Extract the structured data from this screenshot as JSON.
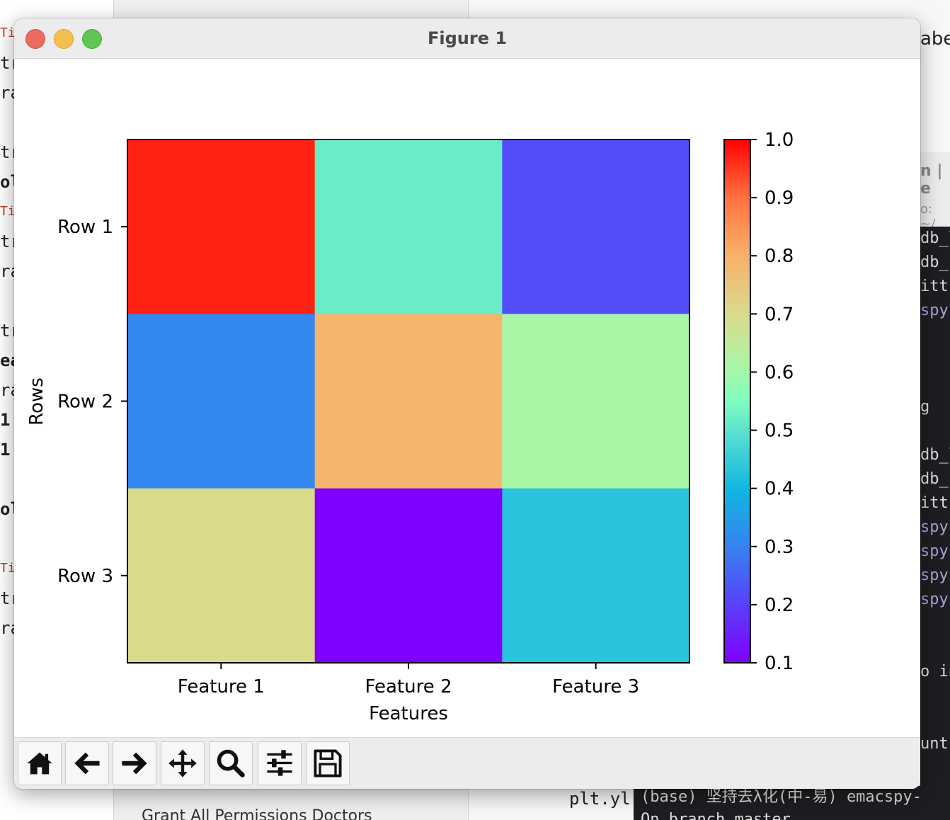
{
  "window": {
    "title": "Figure 1"
  },
  "toolbar": {
    "buttons": [
      {
        "name": "home",
        "icon": "home-icon"
      },
      {
        "name": "back",
        "icon": "arrow-left-icon"
      },
      {
        "name": "forward",
        "icon": "arrow-right-icon"
      },
      {
        "name": "pan",
        "icon": "move-icon"
      },
      {
        "name": "zoom",
        "icon": "magnifier-icon"
      },
      {
        "name": "configure-subplots",
        "icon": "sliders-icon"
      },
      {
        "name": "save",
        "icon": "floppy-disk-icon"
      }
    ]
  },
  "chart_data": {
    "type": "heatmap",
    "colormap": "rainbow",
    "x_categories": [
      "Feature 1",
      "Feature 2",
      "Feature 3"
    ],
    "y_categories": [
      "Row 1",
      "Row 2",
      "Row 3"
    ],
    "values": [
      [
        0.97,
        0.52,
        0.22
      ],
      [
        0.31,
        0.79,
        0.61
      ],
      [
        0.7,
        0.1,
        0.43
      ]
    ],
    "xlabel": "Features",
    "ylabel": "Rows",
    "colorbar": {
      "min": 0.1,
      "max": 1.0,
      "ticks": [
        "0.1",
        "0.2",
        "0.3",
        "0.4",
        "0.5",
        "0.6",
        "0.7",
        "0.8",
        "0.9",
        "1.0"
      ]
    }
  },
  "background": {
    "terminal_prompt": "(base) 坚持去λ化(中-易) emacspy-",
    "terminal_line2": "On branch master",
    "code_fragment": "plt.yl",
    "mid_bottom_text": "Grant All Permissions Doctors",
    "right_label": "abel",
    "term_lines": [
      "db_l",
      "db_s",
      "itt",
      "spy-",
      "",
      "",
      "",
      "g",
      "",
      "db_l",
      "db_s",
      "itt",
      "spy-",
      "spy-",
      "spy-",
      "spy-",
      "",
      "",
      "o in",
      "",
      "",
      "untr"
    ],
    "left_code": [
      "Ti",
      "tr",
      "ra",
      "",
      "tr",
      "ol",
      "Ti",
      "tr",
      "ra",
      "",
      "tr",
      "ea",
      "ra",
      "1",
      "1",
      "",
      "ol",
      "",
      "Ti",
      "tr",
      "ra"
    ]
  }
}
